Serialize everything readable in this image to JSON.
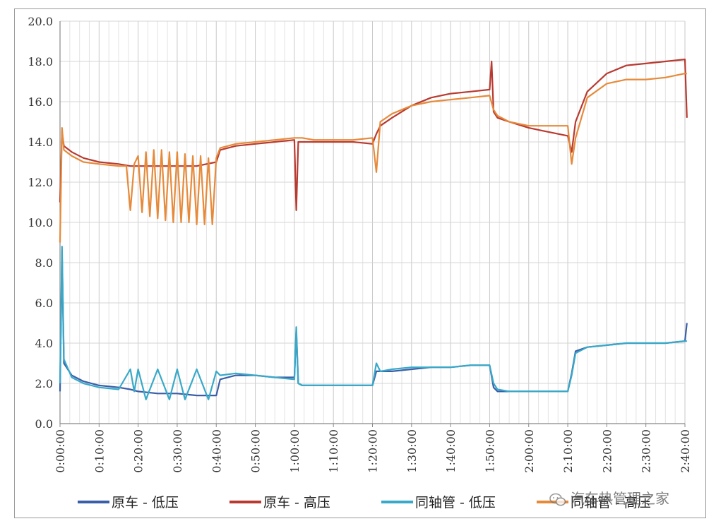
{
  "chart_data": {
    "type": "line",
    "title": "",
    "xlabel": "",
    "ylabel": "",
    "ylim": [
      0,
      20
    ],
    "xlim_minutes": [
      0,
      160
    ],
    "yticks": [
      "0.0",
      "2.0",
      "4.0",
      "6.0",
      "8.0",
      "10.0",
      "12.0",
      "14.0",
      "16.0",
      "18.0",
      "20.0"
    ],
    "xticks": [
      "0:00:00",
      "0:10:00",
      "0:20:00",
      "0:30:00",
      "0:40:00",
      "0:50:00",
      "1:00:00",
      "1:10:00",
      "1:20:00",
      "1:30:00",
      "1:40:00",
      "1:50:00",
      "2:00:00",
      "2:10:00",
      "2:20:00",
      "2:30:00",
      "2:40:00"
    ],
    "grid": true,
    "legend_position": "bottom",
    "series": [
      {
        "name": "原车 - 低压",
        "color": "#3b5ea8",
        "x": [
          0,
          0.5,
          1,
          3,
          6,
          10,
          15,
          18,
          20,
          25,
          30,
          35,
          40,
          41,
          45,
          50,
          55,
          60,
          60.5,
          61,
          62,
          65,
          70,
          75,
          80,
          81,
          82,
          85,
          90,
          95,
          100,
          105,
          110,
          111,
          112,
          115,
          120,
          125,
          130,
          131,
          132,
          135,
          140,
          145,
          150,
          155,
          160,
          160.5
        ],
        "y": [
          1.6,
          8.5,
          3.0,
          2.4,
          2.1,
          1.9,
          1.8,
          1.7,
          1.6,
          1.5,
          1.5,
          1.4,
          1.4,
          2.2,
          2.4,
          2.4,
          2.3,
          2.3,
          4.6,
          2.0,
          1.9,
          1.9,
          1.9,
          1.9,
          1.9,
          2.6,
          2.6,
          2.6,
          2.7,
          2.8,
          2.8,
          2.9,
          2.9,
          1.8,
          1.6,
          1.6,
          1.6,
          1.6,
          1.6,
          2.5,
          3.6,
          3.8,
          3.9,
          4.0,
          4.0,
          4.0,
          4.1,
          5.0
        ]
      },
      {
        "name": "原车 - 高压",
        "color": "#b83a30",
        "x": [
          0,
          0.5,
          1,
          3,
          6,
          10,
          15,
          18,
          20,
          25,
          30,
          35,
          40,
          41,
          45,
          50,
          55,
          60,
          60.5,
          61,
          62,
          65,
          70,
          75,
          80,
          81,
          82,
          85,
          90,
          95,
          100,
          105,
          110,
          110.5,
          111,
          112,
          115,
          120,
          125,
          130,
          131,
          132,
          135,
          140,
          145,
          150,
          155,
          160,
          160.5
        ],
        "y": [
          11.0,
          14.5,
          13.8,
          13.5,
          13.2,
          13.0,
          12.9,
          12.8,
          12.8,
          12.8,
          12.8,
          12.8,
          13.0,
          13.6,
          13.8,
          13.9,
          14.0,
          14.1,
          10.6,
          14.0,
          14.0,
          14.0,
          14.0,
          14.0,
          13.9,
          14.4,
          14.8,
          15.2,
          15.8,
          16.2,
          16.4,
          16.5,
          16.6,
          18.0,
          15.5,
          15.2,
          15.0,
          14.7,
          14.5,
          14.3,
          13.5,
          15.0,
          16.5,
          17.4,
          17.8,
          17.9,
          18.0,
          18.1,
          15.2
        ]
      },
      {
        "name": "同轴管 - 低压",
        "color": "#38a9c8",
        "x": [
          0,
          0.5,
          1,
          3,
          6,
          10,
          15,
          18,
          19,
          20,
          22,
          25,
          28,
          30,
          32,
          35,
          38,
          40,
          41,
          45,
          50,
          55,
          60,
          60.5,
          61,
          62,
          65,
          70,
          75,
          80,
          81,
          82,
          85,
          90,
          95,
          100,
          105,
          110,
          111,
          112,
          115,
          120,
          125,
          130,
          131,
          132,
          135,
          140,
          145,
          150,
          155,
          160,
          160.5
        ],
        "y": [
          2.0,
          8.8,
          3.2,
          2.3,
          2.0,
          1.8,
          1.7,
          2.7,
          1.6,
          2.7,
          1.2,
          2.7,
          1.2,
          2.7,
          1.2,
          2.7,
          1.2,
          2.6,
          2.4,
          2.5,
          2.4,
          2.3,
          2.2,
          4.8,
          2.0,
          1.9,
          1.9,
          1.9,
          1.9,
          1.9,
          3.0,
          2.6,
          2.7,
          2.8,
          2.8,
          2.8,
          2.9,
          2.9,
          2.0,
          1.7,
          1.6,
          1.6,
          1.6,
          1.6,
          2.4,
          3.5,
          3.8,
          3.9,
          4.0,
          4.0,
          4.0,
          4.1,
          4.1
        ]
      },
      {
        "name": "同轴管 - 高压",
        "color": "#e68a3a",
        "x": [
          0,
          0.5,
          1,
          3,
          6,
          10,
          15,
          17,
          18,
          19,
          20,
          21,
          22,
          23,
          24,
          25,
          26,
          27,
          28,
          29,
          30,
          31,
          32,
          33,
          34,
          35,
          36,
          37,
          38,
          39,
          40,
          41,
          45,
          50,
          55,
          60,
          62,
          65,
          70,
          75,
          80,
          81,
          82,
          85,
          90,
          95,
          100,
          105,
          110,
          111,
          112,
          115,
          120,
          125,
          130,
          131,
          132,
          135,
          140,
          145,
          150,
          155,
          160,
          160.5
        ],
        "y": [
          9.0,
          14.7,
          13.6,
          13.3,
          13.0,
          12.9,
          12.8,
          12.8,
          10.6,
          12.9,
          13.3,
          10.5,
          13.5,
          10.3,
          13.6,
          10.2,
          13.6,
          10.1,
          13.5,
          10.0,
          13.5,
          10.0,
          13.4,
          10.0,
          13.3,
          9.9,
          13.3,
          9.9,
          13.2,
          9.9,
          13.2,
          13.7,
          13.9,
          14.0,
          14.1,
          14.2,
          14.2,
          14.1,
          14.1,
          14.1,
          14.2,
          12.5,
          15.0,
          15.4,
          15.8,
          16.0,
          16.1,
          16.2,
          16.3,
          15.6,
          15.3,
          15.0,
          14.8,
          14.8,
          14.8,
          12.9,
          14.2,
          16.2,
          16.9,
          17.1,
          17.1,
          17.2,
          17.4,
          17.4
        ]
      }
    ]
  },
  "watermark": {
    "text": "汽车热管理之家",
    "icon": "wechat-icon"
  }
}
